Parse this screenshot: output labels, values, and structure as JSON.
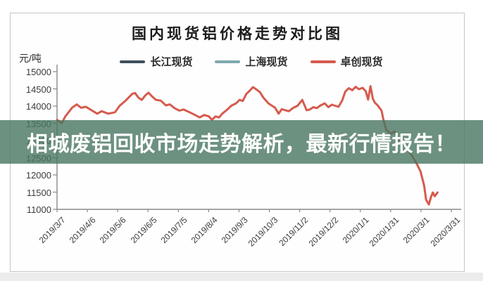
{
  "page": {
    "background": "#ffffff",
    "footer_strip_color": "#ececec",
    "chart_border_color": "#c5c5c5"
  },
  "banner": {
    "text": "相城废铝回收市场走势解析，最新行情报告！",
    "text_color": "#ffffff",
    "background_rgba": "rgba(73,118,96,0.8)"
  },
  "chart_data": {
    "type": "line",
    "title": "国内现货铝价格走势对比图",
    "unit_label": "元/吨",
    "ylim": [
      11000,
      15000
    ],
    "ytick_values": [
      15000,
      14500,
      14000,
      13500,
      13000,
      12500,
      12000,
      11500,
      11000
    ],
    "x_tick_labels": [
      "2019/3/7",
      "2019/4/6",
      "2019/5/6",
      "2019/6/5",
      "2019/7/5",
      "2019/8/4",
      "2019/9/3",
      "2019/10/3",
      "2019/11/2",
      "2019/12/2",
      "2020/1/1",
      "2020/1/31",
      "2020/3/1",
      "2020/3/31"
    ],
    "x_domain": [
      "2019/3/7",
      "2020/3/31"
    ],
    "grid": false,
    "legend_position": "top",
    "axis_color": "#8a8a8a",
    "tick_label_color": "#3c3c3c",
    "series": [
      {
        "name": "长江现货",
        "color": "#3d4f5d"
      },
      {
        "name": "上海现货",
        "color": "#7fa8ae"
      },
      {
        "name": "卓创现货",
        "color": "#d65a4e"
      }
    ],
    "series_note": "三条曲线基本重合，红色卓创现货绘制在最上层，是图中唯一清晰可见的曲线",
    "points_visible_line": [
      [
        0.0,
        13600
      ],
      [
        0.012,
        13500
      ],
      [
        0.021,
        13700
      ],
      [
        0.038,
        13950
      ],
      [
        0.05,
        14050
      ],
      [
        0.061,
        13950
      ],
      [
        0.073,
        13980
      ],
      [
        0.102,
        13780
      ],
      [
        0.113,
        13850
      ],
      [
        0.13,
        13780
      ],
      [
        0.147,
        13820
      ],
      [
        0.159,
        14010
      ],
      [
        0.173,
        14150
      ],
      [
        0.191,
        14360
      ],
      [
        0.198,
        14380
      ],
      [
        0.206,
        14250
      ],
      [
        0.215,
        14180
      ],
      [
        0.224,
        14310
      ],
      [
        0.232,
        14390
      ],
      [
        0.241,
        14280
      ],
      [
        0.251,
        14180
      ],
      [
        0.263,
        14160
      ],
      [
        0.276,
        14020
      ],
      [
        0.286,
        14050
      ],
      [
        0.298,
        13940
      ],
      [
        0.31,
        13870
      ],
      [
        0.321,
        13900
      ],
      [
        0.338,
        13810
      ],
      [
        0.35,
        13740
      ],
      [
        0.362,
        13670
      ],
      [
        0.373,
        13740
      ],
      [
        0.385,
        13700
      ],
      [
        0.393,
        13600
      ],
      [
        0.402,
        13700
      ],
      [
        0.411,
        13670
      ],
      [
        0.419,
        13780
      ],
      [
        0.432,
        13900
      ],
      [
        0.442,
        14010
      ],
      [
        0.454,
        14080
      ],
      [
        0.463,
        14180
      ],
      [
        0.471,
        14150
      ],
      [
        0.48,
        14350
      ],
      [
        0.489,
        14450
      ],
      [
        0.497,
        14550
      ],
      [
        0.506,
        14480
      ],
      [
        0.515,
        14400
      ],
      [
        0.523,
        14250
      ],
      [
        0.536,
        14080
      ],
      [
        0.553,
        13950
      ],
      [
        0.562,
        13780
      ],
      [
        0.57,
        13910
      ],
      [
        0.579,
        13880
      ],
      [
        0.588,
        13850
      ],
      [
        0.598,
        13940
      ],
      [
        0.61,
        14010
      ],
      [
        0.622,
        14180
      ],
      [
        0.633,
        13880
      ],
      [
        0.641,
        13900
      ],
      [
        0.65,
        13970
      ],
      [
        0.659,
        13940
      ],
      [
        0.667,
        14010
      ],
      [
        0.679,
        14080
      ],
      [
        0.688,
        13970
      ],
      [
        0.697,
        14040
      ],
      [
        0.705,
        14010
      ],
      [
        0.714,
        13980
      ],
      [
        0.723,
        14160
      ],
      [
        0.731,
        14420
      ],
      [
        0.74,
        14520
      ],
      [
        0.749,
        14460
      ],
      [
        0.757,
        14560
      ],
      [
        0.766,
        14490
      ],
      [
        0.775,
        14530
      ],
      [
        0.783,
        14430
      ],
      [
        0.789,
        14190
      ],
      [
        0.795,
        14580
      ],
      [
        0.801,
        14210
      ],
      [
        0.806,
        14100
      ],
      [
        0.814,
        14010
      ],
      [
        0.823,
        13870
      ],
      [
        0.827,
        13650
      ],
      [
        0.835,
        13300
      ],
      [
        0.847,
        13200
      ],
      [
        0.856,
        13260
      ],
      [
        0.866,
        13030
      ],
      [
        0.875,
        12950
      ],
      [
        0.884,
        12820
      ],
      [
        0.893,
        12680
      ],
      [
        0.901,
        12540
      ],
      [
        0.913,
        12310
      ],
      [
        0.922,
        12100
      ],
      [
        0.931,
        11690
      ],
      [
        0.936,
        11280
      ],
      [
        0.943,
        11140
      ],
      [
        0.948,
        11340
      ],
      [
        0.953,
        11490
      ],
      [
        0.958,
        11380
      ],
      [
        0.965,
        11490
      ]
    ]
  }
}
